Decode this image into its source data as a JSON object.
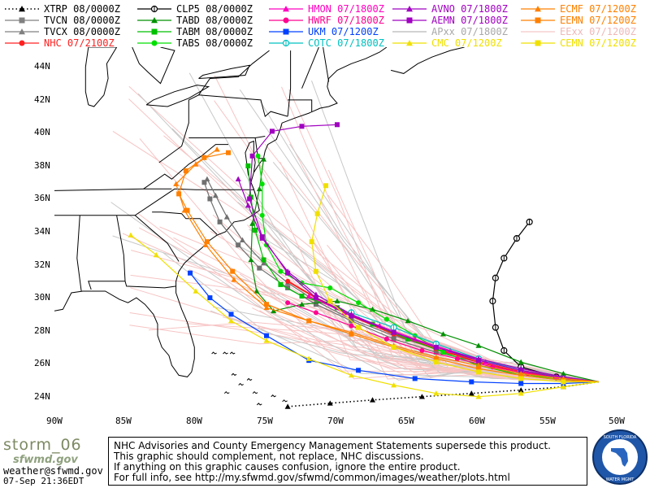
{
  "legend": [
    {
      "label": "XTRP 08/0000Z",
      "color": "#000000",
      "marker": "tri",
      "dash": "dot"
    },
    {
      "label": "TVCN 08/0000Z",
      "color": "#808080",
      "marker": "sq"
    },
    {
      "label": "TVCX 08/0000Z",
      "color": "#808080",
      "marker": "tri"
    },
    {
      "label": "NHC 07/2100Z",
      "color": "#ff2020",
      "marker": "dot"
    },
    {
      "label": "CLP5 08/0000Z",
      "color": "#000000",
      "marker": "ring"
    },
    {
      "label": "TABD 08/0000Z",
      "color": "#009000",
      "marker": "tri"
    },
    {
      "label": "TABM 08/0000Z",
      "color": "#00c000",
      "marker": "sq"
    },
    {
      "label": "TABS 08/0000Z",
      "color": "#00e000",
      "marker": "dot"
    },
    {
      "label": "HMON 07/1800Z",
      "color": "#ff00c0",
      "marker": "tri"
    },
    {
      "label": "HWRF 07/1800Z",
      "color": "#ff0090",
      "marker": "dot"
    },
    {
      "label": "UKM 07/1200Z",
      "color": "#0040ff",
      "marker": "sq"
    },
    {
      "label": "COTC 07/1800Z",
      "color": "#00c0c0",
      "marker": "ring"
    },
    {
      "label": "AVNO 07/1800Z",
      "color": "#a000c0",
      "marker": "tri"
    },
    {
      "label": "AEMN 07/1800Z",
      "color": "#a000c0",
      "marker": "sq"
    },
    {
      "label": "APxx 07/1800Z",
      "color": "#b8b8b8",
      "marker": "none"
    },
    {
      "label": "CMC 07/1200Z",
      "color": "#f0e000",
      "marker": "tri"
    },
    {
      "label": "ECMF 07/1200Z",
      "color": "#ff8000",
      "marker": "tri"
    },
    {
      "label": "EEMN 07/1200Z",
      "color": "#ff8000",
      "marker": "sq"
    },
    {
      "label": "EExx 07/1200Z",
      "color": "#f5c8c8",
      "marker": "none"
    },
    {
      "label": "CEMN 07/1200Z",
      "color": "#f0e000",
      "marker": "sq"
    }
  ],
  "axes": {
    "lon_ticks": [
      "90W",
      "85W",
      "80W",
      "75W",
      "70W",
      "65W",
      "60W",
      "55W",
      "50W"
    ],
    "lat_ticks": [
      "44N",
      "42N",
      "40N",
      "38N",
      "36N",
      "34N",
      "32N",
      "30N",
      "28N",
      "26N",
      "24N"
    ]
  },
  "footer": {
    "brand": "storm_06",
    "brand2": "sfwmd.gov",
    "email": "weather@sfwmd.gov",
    "timestamp": "07-Sep 21:36EDT",
    "notice": [
      "NHC Advisories and County Emergency Management Statements supersede this product.",
      "This graphic should complement, not replace, NHC discussions.",
      "If anything on this graphic causes confusion, ignore the entire product.",
      "For full info, see  http://my.sfwmd.gov/sfwmd/common/images/weather/plots.html"
    ],
    "seal": {
      "top": "SOUTH FLORIDA WATER",
      "bottom": "MANAGEMENT DISTRICT"
    }
  },
  "tracks": [
    {
      "model": "XTRP",
      "color": "#000000",
      "dash": "dot",
      "marker": "tri",
      "pts": [
        [
          -51.5,
          24.9
        ],
        [
          -54,
          24.6
        ],
        [
          -57,
          24.4
        ],
        [
          -60.5,
          24.2
        ],
        [
          -64,
          24.0
        ],
        [
          -67.5,
          23.8
        ],
        [
          -70.5,
          23.6
        ],
        [
          -73.5,
          23.4
        ]
      ]
    },
    {
      "model": "CLP5",
      "color": "#000000",
      "marker": "ring",
      "pts": [
        [
          -51.5,
          24.9
        ],
        [
          -54.5,
          25.2
        ],
        [
          -57,
          25.8
        ],
        [
          -58.2,
          26.8
        ],
        [
          -58.8,
          28.2
        ],
        [
          -59,
          29.8
        ],
        [
          -58.8,
          31.2
        ],
        [
          -58.2,
          32.4
        ],
        [
          -57.3,
          33.6
        ],
        [
          -56.4,
          34.6
        ]
      ]
    },
    {
      "model": "TVCN",
      "color": "#707070",
      "marker": "sq",
      "pts": [
        [
          -51.5,
          24.9
        ],
        [
          -54,
          25.1
        ],
        [
          -57,
          25.5
        ],
        [
          -60,
          26.1
        ],
        [
          -63,
          26.7
        ],
        [
          -66,
          27.5
        ],
        [
          -69,
          28.6
        ],
        [
          -71.5,
          29.6
        ],
        [
          -73.5,
          30.6
        ],
        [
          -75.5,
          31.8
        ],
        [
          -77,
          33.2
        ],
        [
          -78.3,
          34.6
        ],
        [
          -79,
          36.0
        ],
        [
          -79.4,
          37.0
        ]
      ]
    },
    {
      "model": "TVCX",
      "color": "#707070",
      "marker": "tri",
      "pts": [
        [
          -51.5,
          24.9
        ],
        [
          -54,
          25.2
        ],
        [
          -57,
          25.6
        ],
        [
          -60,
          26.2
        ],
        [
          -63,
          26.9
        ],
        [
          -66,
          27.7
        ],
        [
          -69,
          28.7
        ],
        [
          -71.5,
          29.8
        ],
        [
          -73.5,
          30.9
        ],
        [
          -75.2,
          32.1
        ],
        [
          -76.7,
          33.5
        ],
        [
          -77.8,
          34.9
        ],
        [
          -78.6,
          36.2
        ],
        [
          -79.2,
          37.2
        ]
      ]
    },
    {
      "model": "NHC",
      "color": "#ff2020",
      "marker": "dot",
      "pts": [
        [
          -51.5,
          24.9
        ],
        [
          -54,
          25.1
        ],
        [
          -57,
          25.5
        ],
        [
          -60,
          26.1
        ],
        [
          -63,
          26.9
        ],
        [
          -66,
          27.8
        ],
        [
          -69,
          28.9
        ],
        [
          -71.5,
          30.0
        ],
        [
          -73.5,
          31.0
        ]
      ]
    },
    {
      "model": "TABD",
      "color": "#009000",
      "marker": "tri",
      "pts": [
        [
          -51.5,
          24.9
        ],
        [
          -54,
          25.4
        ],
        [
          -57,
          26.1
        ],
        [
          -60,
          27.1
        ],
        [
          -62.5,
          27.8
        ],
        [
          -65,
          28.6
        ],
        [
          -67.5,
          29.3
        ],
        [
          -70,
          29.8
        ],
        [
          -72.5,
          29.6
        ],
        [
          -74.5,
          29.2
        ],
        [
          -75.7,
          30.4
        ],
        [
          -76.1,
          32.3
        ],
        [
          -76.0,
          34.5
        ],
        [
          -75.5,
          36.6
        ],
        [
          -75.2,
          38.4
        ]
      ]
    },
    {
      "model": "TABM",
      "color": "#00c000",
      "marker": "sq",
      "pts": [
        [
          -51.5,
          24.9
        ],
        [
          -54,
          25.0
        ],
        [
          -57,
          25.3
        ],
        [
          -60,
          25.9
        ],
        [
          -62.5,
          26.7
        ],
        [
          -65,
          27.5
        ],
        [
          -67.5,
          28.4
        ],
        [
          -70,
          29.4
        ],
        [
          -72.5,
          30.1
        ],
        [
          -74,
          30.8
        ],
        [
          -75.2,
          32.3
        ],
        [
          -75.8,
          34.1
        ],
        [
          -76.1,
          36.1
        ],
        [
          -76.3,
          38.0
        ]
      ]
    },
    {
      "model": "TABS",
      "color": "#00e000",
      "marker": "dot",
      "pts": [
        [
          -51.5,
          24.9
        ],
        [
          -54,
          25.0
        ],
        [
          -57,
          25.4
        ],
        [
          -60,
          25.9
        ],
        [
          -62.5,
          26.7
        ],
        [
          -64.5,
          27.7
        ],
        [
          -66.5,
          28.7
        ],
        [
          -68.5,
          29.7
        ],
        [
          -70.5,
          30.6
        ],
        [
          -72.5,
          30.9
        ],
        [
          -74,
          31.6
        ],
        [
          -75,
          33.2
        ],
        [
          -75.3,
          35.0
        ],
        [
          -75.3,
          36.9
        ],
        [
          -75.6,
          38.6
        ]
      ]
    },
    {
      "model": "HMON",
      "color": "#ff00c0",
      "marker": "tri",
      "pts": [
        [
          -51.5,
          24.9
        ],
        [
          -54.5,
          25.2
        ],
        [
          -57,
          25.6
        ],
        [
          -59.5,
          26.1
        ],
        [
          -62,
          26.8
        ],
        [
          -64.5,
          27.5
        ],
        [
          -67,
          28.3
        ],
        [
          -69.5,
          29.1
        ],
        [
          -72,
          30.1
        ]
      ]
    },
    {
      "model": "HWRF",
      "color": "#ff0090",
      "marker": "dot",
      "pts": [
        [
          -51.5,
          24.9
        ],
        [
          -54,
          25.1
        ],
        [
          -56.5,
          25.4
        ],
        [
          -59,
          25.8
        ],
        [
          -61.5,
          26.3
        ],
        [
          -64,
          26.8
        ],
        [
          -66.5,
          27.5
        ],
        [
          -69,
          28.3
        ],
        [
          -71.5,
          29.1
        ],
        [
          -73.5,
          29.7
        ]
      ]
    },
    {
      "model": "UKM",
      "color": "#0040ff",
      "marker": "sq",
      "pts": [
        [
          -51.5,
          24.9
        ],
        [
          -54,
          24.8
        ],
        [
          -57,
          24.8
        ],
        [
          -60.5,
          24.9
        ],
        [
          -64.5,
          25.1
        ],
        [
          -68.5,
          25.6
        ],
        [
          -72,
          26.2
        ],
        [
          -75,
          27.7
        ],
        [
          -77.5,
          29.0
        ],
        [
          -79,
          30.0
        ],
        [
          -80.4,
          31.5
        ]
      ]
    },
    {
      "model": "COTC",
      "color": "#00c0c0",
      "marker": "ring",
      "pts": [
        [
          -51.5,
          24.9
        ],
        [
          -54,
          25.1
        ],
        [
          -57,
          25.6
        ],
        [
          -60,
          26.3
        ],
        [
          -63,
          27.2
        ],
        [
          -66,
          28.2
        ],
        [
          -69,
          29.1
        ]
      ]
    },
    {
      "model": "AVNO",
      "color": "#a000c0",
      "marker": "tri",
      "pts": [
        [
          -51.5,
          24.9
        ],
        [
          -54,
          25.2
        ],
        [
          -57,
          25.7
        ],
        [
          -60,
          26.3
        ],
        [
          -63,
          27.0
        ],
        [
          -66,
          27.9
        ],
        [
          -69,
          29.0
        ],
        [
          -71.5,
          30.2
        ],
        [
          -73.5,
          31.6
        ],
        [
          -75.3,
          33.6
        ],
        [
          -76.3,
          35.6
        ],
        [
          -77.0,
          37.2
        ]
      ]
    },
    {
      "model": "AEMN",
      "color": "#a000c0",
      "marker": "sq",
      "pts": [
        [
          -51.5,
          24.9
        ],
        [
          -54,
          25.1
        ],
        [
          -57,
          25.6
        ],
        [
          -60,
          26.2
        ],
        [
          -63,
          27.0
        ],
        [
          -66,
          27.9
        ],
        [
          -69,
          28.9
        ],
        [
          -71.5,
          30.0
        ],
        [
          -73.5,
          31.5
        ],
        [
          -75.3,
          33.7
        ],
        [
          -76.2,
          36.0
        ],
        [
          -76.0,
          38.6
        ],
        [
          -74.6,
          40.1
        ],
        [
          -72.5,
          40.4
        ],
        [
          -70.0,
          40.5
        ]
      ]
    },
    {
      "model": "CMC",
      "color": "#f0e000",
      "marker": "tri",
      "pts": [
        [
          -51.5,
          24.9
        ],
        [
          -54,
          24.6
        ],
        [
          -57,
          24.2
        ],
        [
          -60,
          24.0
        ],
        [
          -63,
          24.2
        ],
        [
          -66,
          24.7
        ],
        [
          -69,
          25.3
        ],
        [
          -72,
          26.3
        ],
        [
          -75,
          27.4
        ],
        [
          -77.5,
          28.6
        ],
        [
          -80,
          30.4
        ],
        [
          -82.8,
          32.6
        ],
        [
          -84.6,
          33.8
        ]
      ]
    },
    {
      "model": "ECMF",
      "color": "#ff8000",
      "marker": "tri",
      "pts": [
        [
          -51.5,
          24.9
        ],
        [
          -54,
          25.1
        ],
        [
          -57,
          25.4
        ],
        [
          -60,
          25.9
        ],
        [
          -63,
          26.4
        ],
        [
          -66,
          27.1
        ],
        [
          -69,
          27.9
        ],
        [
          -72,
          28.6
        ],
        [
          -75,
          29.4
        ],
        [
          -77.3,
          31.1
        ],
        [
          -79.3,
          33.2
        ],
        [
          -80.8,
          35.3
        ],
        [
          -81.4,
          36.9
        ],
        [
          -80.0,
          38.1
        ],
        [
          -78.5,
          39.0
        ]
      ]
    },
    {
      "model": "EEMN",
      "color": "#ff8000",
      "marker": "sq",
      "pts": [
        [
          -51.5,
          24.9
        ],
        [
          -54,
          25.0
        ],
        [
          -57,
          25.3
        ],
        [
          -60,
          25.7
        ],
        [
          -63,
          26.3
        ],
        [
          -66,
          27.0
        ],
        [
          -69,
          27.8
        ],
        [
          -72,
          28.6
        ],
        [
          -75,
          29.6
        ],
        [
          -77.4,
          31.6
        ],
        [
          -79.2,
          33.4
        ],
        [
          -80.6,
          35.3
        ],
        [
          -81.2,
          36.3
        ],
        [
          -80.7,
          37.7
        ],
        [
          -79.4,
          38.5
        ],
        [
          -77.7,
          38.8
        ]
      ]
    },
    {
      "model": "CEMN",
      "color": "#f0e000",
      "marker": "sq",
      "pts": [
        [
          -51.5,
          24.9
        ],
        [
          -54,
          24.9
        ],
        [
          -57,
          25.1
        ],
        [
          -60,
          25.5
        ],
        [
          -63,
          26.1
        ],
        [
          -66,
          27.0
        ],
        [
          -68.5,
          28.2
        ],
        [
          -70.5,
          29.8
        ],
        [
          -71.5,
          31.6
        ],
        [
          -71.8,
          33.4
        ],
        [
          -71.4,
          35.1
        ],
        [
          -70.8,
          36.8
        ]
      ]
    }
  ]
}
